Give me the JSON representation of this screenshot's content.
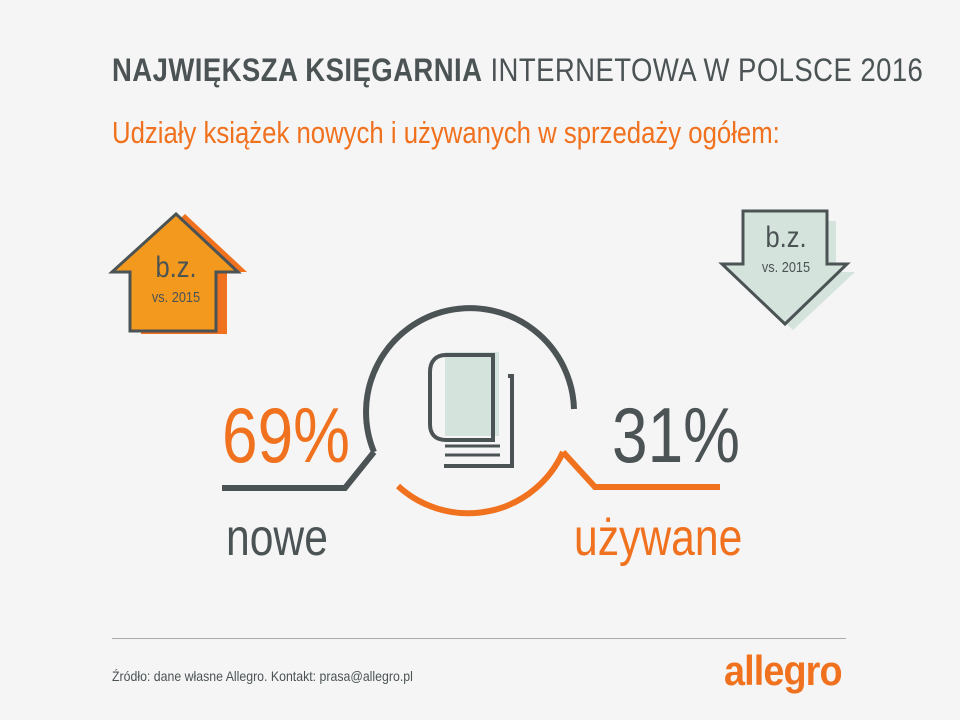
{
  "header": {
    "title_bold": "NAJWIĘKSZA KSIĘGARNIA",
    "title_light": "INTERNETOWA W POLSCE 2016",
    "subtitle": "Udziały książek nowych i używanych w sprzedaży ogółem:"
  },
  "new_books": {
    "share": 69,
    "share_text": "69%",
    "label": "nowe",
    "trend_icon": "arrow-up-icon",
    "trend_main": "b.z.",
    "trend_sub": "vs. 2015",
    "color": "#f0711e"
  },
  "used_books": {
    "share": 31,
    "share_text": "31%",
    "label": "używane",
    "trend_icon": "arrow-down-icon",
    "trend_main": "b.z.",
    "trend_sub": "vs. 2015",
    "color": "#4b5355"
  },
  "center_icon": "book-icon",
  "footer": {
    "source": "Źródło: dane własne Allegro. Kontakt: prasa@allegro.pl",
    "logo": "allegro"
  },
  "colors": {
    "accent": "#f0711e",
    "dark": "#4b5355",
    "mint": "#d4e4dc",
    "background": "#f5f5f5"
  }
}
